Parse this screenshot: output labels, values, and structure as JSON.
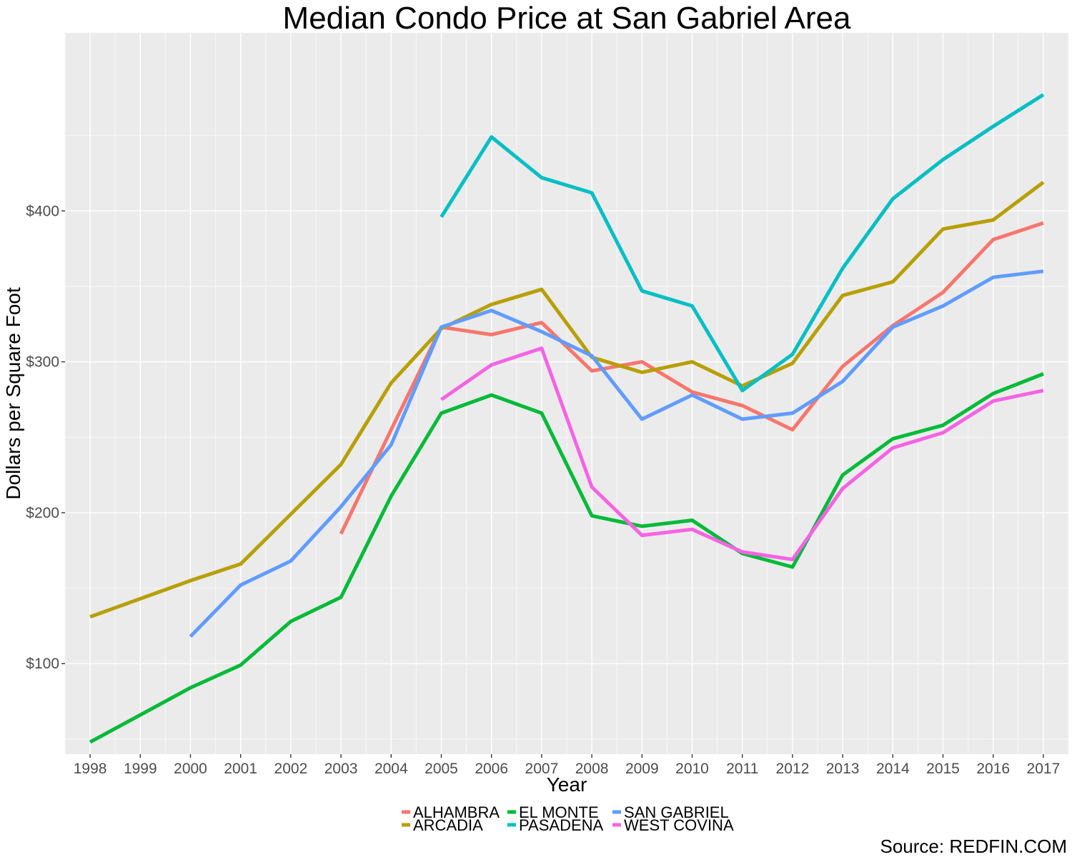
{
  "chart_data": {
    "type": "line",
    "title": "Median Condo Price at San Gabriel Area",
    "xlabel": "Year",
    "ylabel": "Dollars per Square Foot",
    "x": [
      1998,
      1999,
      2000,
      2001,
      2002,
      2003,
      2004,
      2005,
      2006,
      2007,
      2008,
      2009,
      2010,
      2011,
      2012,
      2013,
      2014,
      2015,
      2016,
      2017
    ],
    "x_tick_labels": [
      "1998",
      "1999",
      "2000",
      "2001",
      "2002",
      "2003",
      "2004",
      "2005",
      "2006",
      "2007",
      "2008",
      "2009",
      "2010",
      "2011",
      "2012",
      "2013",
      "2014",
      "2015",
      "2016",
      "2017"
    ],
    "y_ticks": [
      100,
      200,
      300,
      400
    ],
    "y_tick_labels": [
      "$100",
      "$200",
      "$300",
      "$400"
    ],
    "xlim": [
      1997.5,
      2017.5
    ],
    "ylim": [
      40,
      518
    ],
    "grid": true,
    "legend_position": "bottom",
    "series": [
      {
        "name": "ALHAMBRA",
        "color": "#F8766D",
        "values": [
          null,
          null,
          null,
          null,
          null,
          186,
          255,
          323,
          318,
          326,
          294,
          300,
          280,
          271,
          255,
          297,
          324,
          346,
          381,
          392
        ]
      },
      {
        "name": "ARCADIA",
        "color": "#B79F00",
        "values": [
          131,
          143,
          155,
          166,
          199,
          232,
          286,
          322,
          338,
          348,
          303,
          293,
          300,
          284,
          299,
          344,
          353,
          388,
          394,
          419
        ]
      },
      {
        "name": "EL MONTE",
        "color": "#00BA38",
        "values": [
          48,
          66,
          84,
          99,
          128,
          144,
          211,
          266,
          278,
          266,
          198,
          191,
          195,
          173,
          164,
          225,
          249,
          258,
          279,
          292
        ]
      },
      {
        "name": "PASADENA",
        "color": "#00BFC4",
        "values": [
          null,
          null,
          null,
          null,
          null,
          null,
          null,
          396,
          449,
          422,
          412,
          347,
          337,
          281,
          305,
          362,
          408,
          434,
          456,
          477
        ]
      },
      {
        "name": "SAN GABRIEL",
        "color": "#619CFF",
        "values": [
          null,
          null,
          118,
          152,
          168,
          204,
          245,
          323,
          334,
          320,
          304,
          262,
          278,
          262,
          266,
          287,
          323,
          337,
          356,
          360
        ]
      },
      {
        "name": "WEST COVINA",
        "color": "#F564E3",
        "values": [
          null,
          null,
          null,
          null,
          null,
          null,
          null,
          275,
          298,
          309,
          217,
          185,
          189,
          174,
          169,
          216,
          243,
          253,
          274,
          281
        ]
      }
    ],
    "legend_order": [
      "ALHAMBRA",
      "ARCADIA",
      "EL MONTE",
      "PASADENA",
      "SAN GABRIEL",
      "WEST COVINA"
    ],
    "source": "Source: REDFIN.COM"
  }
}
